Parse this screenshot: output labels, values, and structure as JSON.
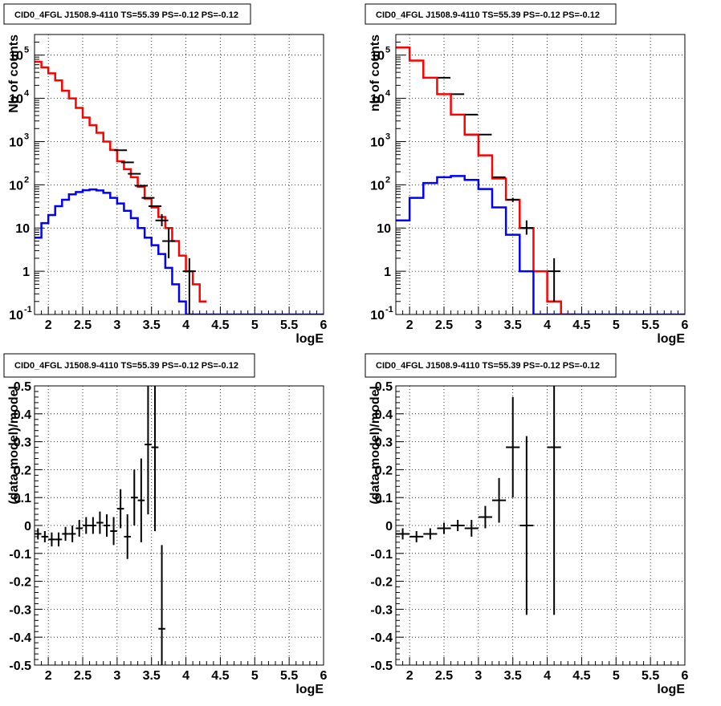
{
  "chart_data": [
    {
      "type": "histogram",
      "title": "CID0_4FGL J1508.9-4110 TS=55.39 PS=-0.12 PS=-0.12",
      "xlabel": "logE",
      "ylabel": "Nb of counts",
      "xlim": [
        1.8,
        6.0
      ],
      "ylim": [
        0.1,
        300000
      ],
      "yscale": "log",
      "grid": true,
      "x_ticks": [
        "2",
        "2.5",
        "3",
        "3.5",
        "4",
        "4.5",
        "5",
        "5.5",
        "6"
      ],
      "y_ticks": [
        "10^-1",
        "1",
        "10",
        "10^2",
        "10^3",
        "10^4",
        "10^5"
      ],
      "series": [
        {
          "color": "#ff0000",
          "style": "step",
          "bins": [
            1.8,
            1.9,
            2.0,
            2.1,
            2.2,
            2.3,
            2.4,
            2.5,
            2.6,
            2.7,
            2.8,
            2.9,
            3.0,
            3.1,
            3.2,
            3.3,
            3.4,
            3.5,
            3.6,
            3.7,
            3.8,
            3.9,
            4.0,
            4.1,
            4.2,
            4.3
          ],
          "values": [
            70000,
            52000,
            38000,
            26000,
            15000,
            10000,
            6000,
            3600,
            2400,
            1600,
            1000,
            640,
            350,
            230,
            150,
            90,
            48,
            30,
            18,
            10,
            5,
            2.3,
            1,
            0.5,
            0.2
          ]
        },
        {
          "color": "#0000ff",
          "style": "step",
          "bins": [
            1.8,
            1.9,
            2.0,
            2.1,
            2.2,
            2.3,
            2.4,
            2.5,
            2.6,
            2.7,
            2.8,
            2.9,
            3.0,
            3.1,
            3.2,
            3.3,
            3.4,
            3.5,
            3.6,
            3.7,
            3.8,
            3.9,
            4.0,
            4.1,
            4.2,
            4.3,
            4.4,
            4.5,
            4.6,
            4.7,
            4.8,
            4.9,
            5.0,
            5.1,
            5.2,
            5.3,
            5.4,
            5.5,
            5.6,
            5.7,
            5.8,
            5.9,
            6.0
          ],
          "values": [
            6,
            13,
            20,
            32,
            45,
            60,
            68,
            75,
            78,
            74,
            65,
            50,
            37,
            25,
            17,
            10,
            6,
            4,
            2.5,
            1.2,
            0.5,
            0.2,
            0.1,
            0.1,
            0.1,
            0.1,
            0.1,
            0.1,
            0.1,
            0.1,
            0.1,
            0.1,
            0.1,
            0.1,
            0.1,
            0.1,
            0.1,
            0.1,
            0.1,
            0.1,
            0.1,
            0.1
          ]
        }
      ],
      "points": {
        "x": [
          3.05,
          3.15,
          3.25,
          3.35,
          3.45,
          3.55,
          3.65,
          3.75,
          4.05
        ],
        "y": [
          630,
          330,
          180,
          95,
          50,
          32,
          15,
          5,
          1
        ],
        "err_lo": [
          0,
          0,
          0,
          0,
          0,
          0,
          4,
          3,
          1
        ],
        "err_hi": [
          0,
          0,
          0,
          0,
          0,
          0,
          6,
          5,
          1
        ]
      }
    },
    {
      "type": "histogram",
      "title": "CID0_4FGL J1508.9-4110 TS=55.39 PS=-0.12 PS=-0.12",
      "xlabel": "logE",
      "ylabel": "nb of counts",
      "xlim": [
        1.8,
        6.0
      ],
      "ylim": [
        0.1,
        300000
      ],
      "yscale": "log",
      "grid": true,
      "x_ticks": [
        "2",
        "2.5",
        "3",
        "3.5",
        "4",
        "4.5",
        "5",
        "5.5",
        "6"
      ],
      "y_ticks": [
        "10^-1",
        "1",
        "10",
        "10^2",
        "10^3",
        "10^4",
        "10^5"
      ],
      "series": [
        {
          "color": "#ff0000",
          "style": "step",
          "bins": [
            1.8,
            2.0,
            2.2,
            2.4,
            2.6,
            2.8,
            3.0,
            3.2,
            3.4,
            3.6,
            3.8,
            4.0,
            4.2,
            4.4
          ],
          "values": [
            150000,
            75000,
            30000,
            12500,
            4200,
            1450,
            480,
            140,
            45,
            10,
            1,
            0.2,
            0.1
          ]
        },
        {
          "color": "#0000ff",
          "style": "step",
          "bins": [
            1.8,
            2.0,
            2.2,
            2.4,
            2.6,
            2.8,
            3.0,
            3.2,
            3.4,
            3.6,
            3.8,
            4.0,
            4.2,
            4.4,
            4.6,
            4.8,
            5.0,
            5.2,
            5.4,
            5.6,
            5.8,
            6.0
          ],
          "values": [
            15,
            50,
            110,
            150,
            160,
            130,
            80,
            30,
            7,
            1,
            0.1,
            0.1,
            0.1,
            0.1,
            0.1,
            0.1,
            0.1,
            0.1,
            0.1,
            0.1,
            0.1
          ]
        }
      ],
      "points": {
        "x": [
          2.5,
          2.7,
          2.9,
          3.1,
          3.3,
          3.5,
          3.7,
          4.1
        ],
        "y": [
          30000,
          12500,
          4200,
          1450,
          150,
          45,
          10,
          1
        ],
        "err_lo": [
          0,
          0,
          0,
          0,
          0,
          5,
          3,
          0.8
        ],
        "err_hi": [
          0,
          0,
          0,
          0,
          0,
          5,
          5,
          1
        ]
      }
    },
    {
      "type": "scatter",
      "title": "CID0_4FGL J1508.9-4110 TS=55.39 PS=-0.12 PS=-0.12",
      "xlabel": "logE",
      "ylabel": "(data-model)/model",
      "xlim": [
        1.8,
        6.0
      ],
      "ylim": [
        -0.5,
        0.5
      ],
      "grid": true,
      "x_ticks": [
        "2",
        "2.5",
        "3",
        "3.5",
        "4",
        "4.5",
        "5",
        "5.5",
        "6"
      ],
      "y_ticks": [
        "-0.5",
        "-0.4",
        "-0.3",
        "-0.2",
        "-0.1",
        "0",
        "0.1",
        "0.2",
        "0.3",
        "0.4",
        "0.5"
      ],
      "points": {
        "x": [
          1.85,
          1.95,
          2.05,
          2.15,
          2.25,
          2.35,
          2.45,
          2.55,
          2.65,
          2.75,
          2.85,
          2.95,
          3.05,
          3.15,
          3.25,
          3.35,
          3.45,
          3.55,
          3.65
        ],
        "y": [
          -0.03,
          -0.04,
          -0.05,
          -0.05,
          -0.03,
          -0.03,
          -0.01,
          0.0,
          0.0,
          0.01,
          0.0,
          -0.02,
          0.06,
          -0.04,
          0.1,
          0.09,
          0.29,
          0.28,
          -0.37
        ],
        "err": [
          0.02,
          0.02,
          0.025,
          0.025,
          0.025,
          0.03,
          0.03,
          0.03,
          0.03,
          0.04,
          0.04,
          0.05,
          0.07,
          0.08,
          0.1,
          0.15,
          0.25,
          0.3,
          0.3
        ],
        "xerr": [
          0.05,
          0.05,
          0.05,
          0.05,
          0.05,
          0.05,
          0.05,
          0.05,
          0.05,
          0.05,
          0.05,
          0.05,
          0.05,
          0.05,
          0.05,
          0.05,
          0.05,
          0.05,
          0.05
        ]
      }
    },
    {
      "type": "scatter",
      "title": "CID0_4FGL J1508.9-4110 TS=55.39 PS=-0.12 PS=-0.12",
      "xlabel": "logE",
      "ylabel": "(data-model)/model",
      "xlim": [
        1.8,
        6.0
      ],
      "ylim": [
        -0.5,
        0.5
      ],
      "grid": true,
      "x_ticks": [
        "2",
        "2.5",
        "3",
        "3.5",
        "4",
        "4.5",
        "5",
        "5.5",
        "6"
      ],
      "y_ticks": [
        "-0.5",
        "-0.4",
        "-0.3",
        "-0.2",
        "-0.1",
        "0",
        "0.1",
        "0.2",
        "0.3",
        "0.4",
        "0.5"
      ],
      "points": {
        "x": [
          1.9,
          2.1,
          2.3,
          2.5,
          2.7,
          2.9,
          3.1,
          3.3,
          3.5,
          3.7,
          4.1
        ],
        "y": [
          -0.03,
          -0.04,
          -0.03,
          -0.01,
          0.0,
          -0.01,
          0.03,
          0.09,
          0.28,
          0.0,
          0.28
        ],
        "err": [
          0.02,
          0.02,
          0.02,
          0.02,
          0.02,
          0.03,
          0.04,
          0.08,
          0.18,
          0.32,
          0.6
        ],
        "xerr": [
          0.1,
          0.1,
          0.1,
          0.1,
          0.1,
          0.1,
          0.1,
          0.1,
          0.1,
          0.1,
          0.1
        ]
      }
    }
  ]
}
